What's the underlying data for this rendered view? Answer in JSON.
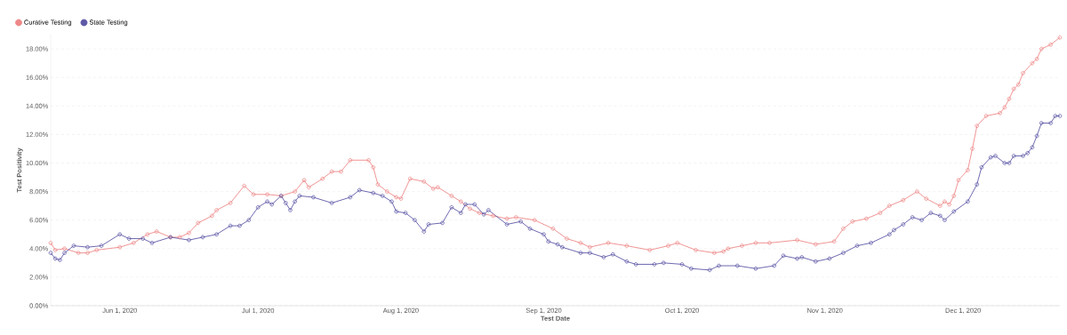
{
  "chart_data": {
    "type": "line",
    "xlabel": "Test Date",
    "ylabel": "Test Positivity",
    "xlim": [
      "2020-05-17",
      "2020-12-22"
    ],
    "xticks": [
      {
        "value": "2020-06-01",
        "label": "Jun 1, 2020"
      },
      {
        "value": "2020-07-01",
        "label": "Jul 1, 2020"
      },
      {
        "value": "2020-08-01",
        "label": "Aug 1, 2020"
      },
      {
        "value": "2020-09-01",
        "label": "Sep 1, 2020"
      },
      {
        "value": "2020-10-01",
        "label": "Oct 1, 2020"
      },
      {
        "value": "2020-11-01",
        "label": "Nov 1, 2020"
      },
      {
        "value": "2020-12-01",
        "label": "Dec 1, 2020"
      }
    ],
    "ylim": [
      0,
      19
    ],
    "yticks": [
      {
        "value": 0,
        "label": "0.00%"
      },
      {
        "value": 2,
        "label": "2.00%"
      },
      {
        "value": 4,
        "label": "4.00%"
      },
      {
        "value": 6,
        "label": "6.00%"
      },
      {
        "value": 8,
        "label": "8.00%"
      },
      {
        "value": 10,
        "label": "10.00%"
      },
      {
        "value": 12,
        "label": "12.00%"
      },
      {
        "value": 14,
        "label": "14.00%"
      },
      {
        "value": 16,
        "label": "16.00%"
      },
      {
        "value": 18,
        "label": "18.00%"
      }
    ],
    "grid": "y",
    "legend": "top left",
    "marker": "circle",
    "line_style": "solid",
    "series": [
      {
        "name": "Curative Testing",
        "color": "#ee8888",
        "x": [
          "2020-05-17",
          "2020-05-18",
          "2020-05-20",
          "2020-05-23",
          "2020-05-25",
          "2020-05-27",
          "2020-06-01",
          "2020-06-04",
          "2020-06-07",
          "2020-06-09",
          "2020-06-12",
          "2020-06-14",
          "2020-06-16",
          "2020-06-18",
          "2020-06-21",
          "2020-06-22",
          "2020-06-25",
          "2020-06-28",
          "2020-06-30",
          "2020-07-03",
          "2020-07-06",
          "2020-07-09",
          "2020-07-11",
          "2020-07-12",
          "2020-07-15",
          "2020-07-17",
          "2020-07-19",
          "2020-07-21",
          "2020-07-25",
          "2020-07-26",
          "2020-07-27",
          "2020-07-29",
          "2020-07-31",
          "2020-08-01",
          "2020-08-03",
          "2020-08-06",
          "2020-08-08",
          "2020-08-09",
          "2020-08-12",
          "2020-08-14",
          "2020-08-16",
          "2020-08-18",
          "2020-08-21",
          "2020-08-24",
          "2020-08-26",
          "2020-08-30",
          "2020-09-03",
          "2020-09-06",
          "2020-09-09",
          "2020-09-11",
          "2020-09-15",
          "2020-09-19",
          "2020-09-24",
          "2020-09-28",
          "2020-09-30",
          "2020-10-04",
          "2020-10-08",
          "2020-10-10",
          "2020-10-11",
          "2020-10-14",
          "2020-10-17",
          "2020-10-20",
          "2020-10-26",
          "2020-10-30",
          "2020-11-03",
          "2020-11-05",
          "2020-11-07",
          "2020-11-10",
          "2020-11-13",
          "2020-11-15",
          "2020-11-18",
          "2020-11-21",
          "2020-11-23",
          "2020-11-26",
          "2020-11-27",
          "2020-11-28",
          "2020-11-29",
          "2020-11-30",
          "2020-12-02",
          "2020-12-03",
          "2020-12-04",
          "2020-12-06",
          "2020-12-09",
          "2020-12-10",
          "2020-12-11",
          "2020-12-12",
          "2020-12-13",
          "2020-12-14",
          "2020-12-16",
          "2020-12-17",
          "2020-12-18",
          "2020-12-20",
          "2020-12-22"
        ],
        "values": [
          4.4,
          3.9,
          4.0,
          3.7,
          3.7,
          3.9,
          4.1,
          4.4,
          5.0,
          5.2,
          4.8,
          4.8,
          5.1,
          5.8,
          6.3,
          6.7,
          7.2,
          8.4,
          7.8,
          7.8,
          7.7,
          8.0,
          8.8,
          8.3,
          8.9,
          9.4,
          9.4,
          10.2,
          10.2,
          9.7,
          8.5,
          8.0,
          7.6,
          7.5,
          8.9,
          8.7,
          8.2,
          8.3,
          7.7,
          7.3,
          6.8,
          6.5,
          6.3,
          6.1,
          6.2,
          6.0,
          5.4,
          4.7,
          4.4,
          4.1,
          4.4,
          4.2,
          3.9,
          4.2,
          4.4,
          3.9,
          3.7,
          3.8,
          4.0,
          4.2,
          4.4,
          4.4,
          4.6,
          4.3,
          4.5,
          5.4,
          5.9,
          6.1,
          6.5,
          7.0,
          7.4,
          8.0,
          7.5,
          7.0,
          7.3,
          7.1,
          7.7,
          8.8,
          9.5,
          11.0,
          12.6,
          13.3,
          13.5,
          13.9,
          14.5,
          15.2,
          15.5,
          16.3,
          17.0,
          17.3,
          18.0,
          18.3,
          18.8
        ]
      },
      {
        "name": "State Testing",
        "color": "#5d58a6",
        "x": [
          "2020-05-17",
          "2020-05-18",
          "2020-05-19",
          "2020-05-20",
          "2020-05-22",
          "2020-05-25",
          "2020-05-28",
          "2020-06-01",
          "2020-06-03",
          "2020-06-06",
          "2020-06-08",
          "2020-06-12",
          "2020-06-16",
          "2020-06-19",
          "2020-06-22",
          "2020-06-25",
          "2020-06-27",
          "2020-06-29",
          "2020-07-01",
          "2020-07-03",
          "2020-07-04",
          "2020-07-06",
          "2020-07-07",
          "2020-07-08",
          "2020-07-09",
          "2020-07-10",
          "2020-07-13",
          "2020-07-17",
          "2020-07-21",
          "2020-07-23",
          "2020-07-26",
          "2020-07-28",
          "2020-07-30",
          "2020-07-31",
          "2020-08-02",
          "2020-08-04",
          "2020-08-06",
          "2020-08-07",
          "2020-08-10",
          "2020-08-12",
          "2020-08-14",
          "2020-08-15",
          "2020-08-17",
          "2020-08-19",
          "2020-08-20",
          "2020-08-24",
          "2020-08-27",
          "2020-08-29",
          "2020-09-01",
          "2020-09-02",
          "2020-09-04",
          "2020-09-05",
          "2020-09-09",
          "2020-09-11",
          "2020-09-14",
          "2020-09-16",
          "2020-09-19",
          "2020-09-21",
          "2020-09-25",
          "2020-09-27",
          "2020-10-01",
          "2020-10-03",
          "2020-10-07",
          "2020-10-09",
          "2020-10-13",
          "2020-10-17",
          "2020-10-21",
          "2020-10-23",
          "2020-10-26",
          "2020-10-27",
          "2020-10-30",
          "2020-11-02",
          "2020-11-05",
          "2020-11-08",
          "2020-11-11",
          "2020-11-15",
          "2020-11-16",
          "2020-11-18",
          "2020-11-20",
          "2020-11-22",
          "2020-11-24",
          "2020-11-26",
          "2020-11-27",
          "2020-11-29",
          "2020-12-02",
          "2020-12-04",
          "2020-12-05",
          "2020-12-07",
          "2020-12-08",
          "2020-12-10",
          "2020-12-11",
          "2020-12-12",
          "2020-12-14",
          "2020-12-15",
          "2020-12-16",
          "2020-12-17",
          "2020-12-18",
          "2020-12-20",
          "2020-12-21",
          "2020-12-22"
        ],
        "values": [
          3.7,
          3.3,
          3.2,
          3.7,
          4.2,
          4.1,
          4.2,
          5.0,
          4.7,
          4.7,
          4.4,
          4.8,
          4.6,
          4.8,
          5.0,
          5.6,
          5.6,
          6.0,
          6.9,
          7.3,
          7.1,
          7.7,
          7.2,
          6.7,
          7.3,
          7.7,
          7.6,
          7.2,
          7.6,
          8.1,
          7.9,
          7.7,
          7.3,
          6.6,
          6.5,
          6.0,
          5.2,
          5.7,
          5.8,
          6.9,
          6.5,
          7.1,
          7.1,
          6.4,
          6.7,
          5.7,
          5.9,
          5.4,
          5.0,
          4.5,
          4.3,
          4.1,
          3.7,
          3.7,
          3.4,
          3.6,
          3.1,
          2.9,
          2.9,
          3.0,
          2.9,
          2.6,
          2.5,
          2.8,
          2.8,
          2.6,
          2.8,
          3.5,
          3.3,
          3.4,
          3.1,
          3.3,
          3.7,
          4.2,
          4.4,
          5.0,
          5.3,
          5.7,
          6.2,
          6.0,
          6.5,
          6.3,
          6.0,
          6.6,
          7.3,
          8.5,
          9.7,
          10.4,
          10.5,
          10.0,
          10.0,
          10.5,
          10.5,
          10.7,
          11.1,
          11.9,
          12.8,
          12.8,
          13.3,
          13.3
        ]
      }
    ]
  }
}
